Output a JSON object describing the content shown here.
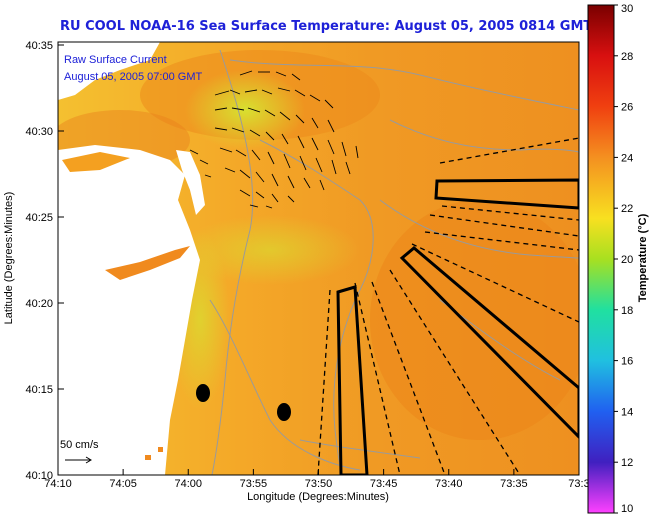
{
  "title": "RU COOL  NOAA-16  Sea Surface Temperature:  August 05, 2005 0814 GMT",
  "overlay": {
    "line1": "Raw Surface Current",
    "line2": "August 05, 2005 07:00 GMT"
  },
  "x_axis": {
    "label": "Longitude (Degrees:Minutes)",
    "ticks": [
      "74:10",
      "74:05",
      "74:00",
      "73:55",
      "73:50",
      "73:45",
      "73:40",
      "73:35",
      "73:3"
    ]
  },
  "y_axis": {
    "label": "Latitude (Degrees:Minutes)",
    "ticks": [
      "40:35",
      "40:30",
      "40:25",
      "40:20",
      "40:15",
      "40:10"
    ]
  },
  "colorbar": {
    "label": "Temperature (°C)",
    "ticks": [
      "30",
      "28",
      "26",
      "24",
      "22",
      "20",
      "18",
      "16",
      "14",
      "12",
      "10"
    ]
  },
  "scale": {
    "label": "50 cm/s"
  },
  "colors": {
    "title": "#1e21d8",
    "water_warm": "#f09020",
    "water_mid": "#f4b020",
    "land": "#ffffff",
    "outline": "#000000"
  }
}
